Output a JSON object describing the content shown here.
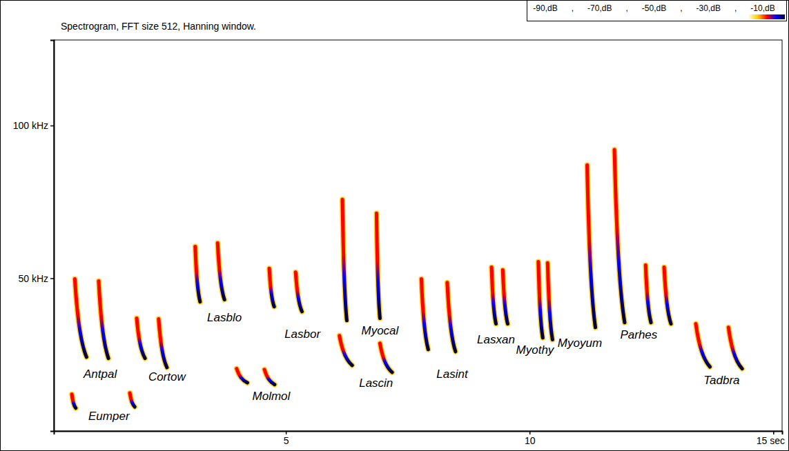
{
  "chart_data": {
    "type": "spectrogram",
    "title": "Spectrogram, FFT size 512, Hanning window.",
    "xlim": [
      0.24,
      15.18
    ],
    "xticks": [
      5,
      10,
      {
        "value": 15,
        "label": "15 sec"
      }
    ],
    "ylim": [
      0,
      128
    ],
    "yticks": [
      {
        "value": 50,
        "label": "50 kHz"
      },
      {
        "value": 100,
        "label": "100 kHz"
      }
    ],
    "grid": false,
    "series": [
      {
        "name": "Antpal",
        "calls": [
          {
            "t_start": 0.67,
            "t_end": 0.91,
            "f_start": 49.8,
            "f_end": 24.2
          },
          {
            "t_start": 1.16,
            "t_end": 1.36,
            "f_start": 49.1,
            "f_end": 23.8
          }
        ]
      },
      {
        "name": "Eumper",
        "calls": [
          {
            "t_start": 0.61,
            "t_end": 0.69,
            "f_start": 12.0,
            "f_end": 7.5
          },
          {
            "t_start": 1.8,
            "t_end": 1.9,
            "f_start": 12.4,
            "f_end": 7.9
          }
        ]
      },
      {
        "name": "Cortow",
        "calls": [
          {
            "t_start": 1.94,
            "t_end": 2.11,
            "f_start": 36.9,
            "f_end": 23.8
          },
          {
            "t_start": 2.39,
            "t_end": 2.56,
            "f_start": 36.7,
            "f_end": 20.8
          }
        ]
      },
      {
        "name": "Lasblo",
        "calls": [
          {
            "t_start": 3.14,
            "t_end": 3.24,
            "f_start": 60.4,
            "f_end": 42.3
          },
          {
            "t_start": 3.6,
            "t_end": 3.74,
            "f_start": 61.5,
            "f_end": 43.0
          }
        ]
      },
      {
        "name": "Molmol",
        "calls": [
          {
            "t_start": 3.99,
            "t_end": 4.21,
            "f_start": 20.4,
            "f_end": 15.8
          },
          {
            "t_start": 4.56,
            "t_end": 4.77,
            "f_start": 20.1,
            "f_end": 15.2
          }
        ]
      },
      {
        "name": "Lasbor",
        "calls": [
          {
            "t_start": 4.66,
            "t_end": 4.76,
            "f_start": 53.2,
            "f_end": 40.7
          },
          {
            "t_start": 5.2,
            "t_end": 5.33,
            "f_start": 52.0,
            "f_end": 39.1
          }
        ]
      },
      {
        "name": "Myocal",
        "calls": [
          {
            "t_start": 6.16,
            "t_end": 6.25,
            "f_start": 75.8,
            "f_end": 36.2
          },
          {
            "t_start": 6.86,
            "t_end": 6.93,
            "f_start": 71.3,
            "f_end": 36.9
          }
        ]
      },
      {
        "name": "Lascin",
        "calls": [
          {
            "t_start": 6.1,
            "t_end": 6.36,
            "f_start": 31.2,
            "f_end": 21.5
          },
          {
            "t_start": 6.93,
            "t_end": 7.18,
            "f_start": 28.7,
            "f_end": 19.2
          }
        ]
      },
      {
        "name": "Lasint",
        "calls": [
          {
            "t_start": 7.78,
            "t_end": 7.92,
            "f_start": 49.8,
            "f_end": 26.7
          },
          {
            "t_start": 8.31,
            "t_end": 8.48,
            "f_start": 48.6,
            "f_end": 26.0
          }
        ]
      },
      {
        "name": "Lasxan",
        "calls": [
          {
            "t_start": 9.22,
            "t_end": 9.31,
            "f_start": 53.6,
            "f_end": 35.1
          },
          {
            "t_start": 9.45,
            "t_end": 9.55,
            "f_start": 52.7,
            "f_end": 35.1
          }
        ]
      },
      {
        "name": "Myothy",
        "calls": [
          {
            "t_start": 10.18,
            "t_end": 10.27,
            "f_start": 55.4,
            "f_end": 30.5
          },
          {
            "t_start": 10.37,
            "t_end": 10.47,
            "f_start": 55.0,
            "f_end": 29.9
          }
        ]
      },
      {
        "name": "Myoyum",
        "calls": [
          {
            "t_start": 11.18,
            "t_end": 11.35,
            "f_start": 87.1,
            "f_end": 33.9
          },
          {
            "t_start": 11.74,
            "t_end": 11.95,
            "f_start": 92.1,
            "f_end": 35.5
          }
        ]
      },
      {
        "name": "Parhes",
        "calls": [
          {
            "t_start": 12.38,
            "t_end": 12.49,
            "f_start": 54.3,
            "f_end": 35.5
          },
          {
            "t_start": 12.76,
            "t_end": 12.9,
            "f_start": 53.6,
            "f_end": 35.1
          }
        ]
      },
      {
        "name": "Tadbra",
        "calls": [
          {
            "t_start": 13.41,
            "t_end": 13.7,
            "f_start": 35.1,
            "f_end": 21.0
          },
          {
            "t_start": 14.08,
            "t_end": 14.36,
            "f_start": 33.9,
            "f_end": 20.4
          }
        ]
      }
    ],
    "colorbar": {
      "range": [
        -90,
        -10
      ],
      "ticks": [
        {
          "value": -90,
          "label": "-90,dB"
        },
        {
          "value": -70,
          "label": "-70,dB"
        },
        {
          "value": -50,
          "label": "-50,dB"
        },
        {
          "value": -30,
          "label": "-30,dB"
        },
        {
          "value": -10,
          "label": "-10,dB"
        }
      ],
      "separator": ",",
      "colors": [
        "#ffffc8",
        "#ffc800",
        "#ff0000",
        "#0000ff",
        "#000030"
      ]
    }
  }
}
